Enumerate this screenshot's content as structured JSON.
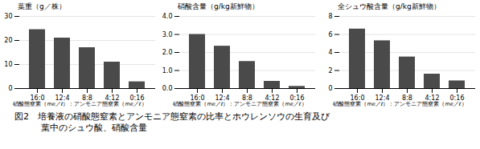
{
  "chart_data": [
    {
      "type": "bar",
      "title": "葉重（g／株）",
      "categories": [
        "16:0",
        "12:4",
        "8:8",
        "4:12",
        "0:16"
      ],
      "values": [
        24.5,
        21.0,
        17.0,
        11.0,
        2.8
      ],
      "color": "#4a4a4a",
      "ylim": [
        0,
        30
      ],
      "yticks": [
        0,
        10,
        20,
        30
      ],
      "grid": true,
      "xlabel": "硝酸態窒素（me／ℓ）：アンモニア態窒素（me／ℓ）"
    },
    {
      "type": "bar",
      "title": "硝酸含量（g/kg新鮮物）",
      "categories": [
        "16:0",
        "12:4",
        "8:8",
        "4:12",
        "0:16"
      ],
      "values": [
        3.0,
        2.35,
        1.5,
        0.4,
        0.12
      ],
      "color": "#4a4a4a",
      "ylim": [
        0,
        4
      ],
      "yticks": [
        0,
        1,
        2,
        3,
        4
      ],
      "grid": true,
      "xlabel": "硝酸態窒素（me／ℓ）：アンモニア態窒素（me／ℓ）"
    },
    {
      "type": "bar",
      "title": "全シュウ酸含量（g/kg新鮮物）",
      "categories": [
        "16:0",
        "12:4",
        "8:8",
        "4:12",
        "0:16"
      ],
      "values": [
        6.6,
        5.3,
        3.5,
        1.6,
        0.85
      ],
      "color": "#4a4a4a",
      "ylim": [
        0,
        8
      ],
      "yticks": [
        0,
        2,
        4,
        6,
        8
      ],
      "grid": true,
      "xlabel": "硝酸態窒素（me／ℓ）：アンモニア態窒素（me／ℓ）"
    }
  ],
  "caption": [
    "図2　培養液の硝酸態窒素とアンモニア態窒素の比率とホウレンソウの生育及び",
    "　　　葉中のシュウ酸、硝酸含量"
  ]
}
